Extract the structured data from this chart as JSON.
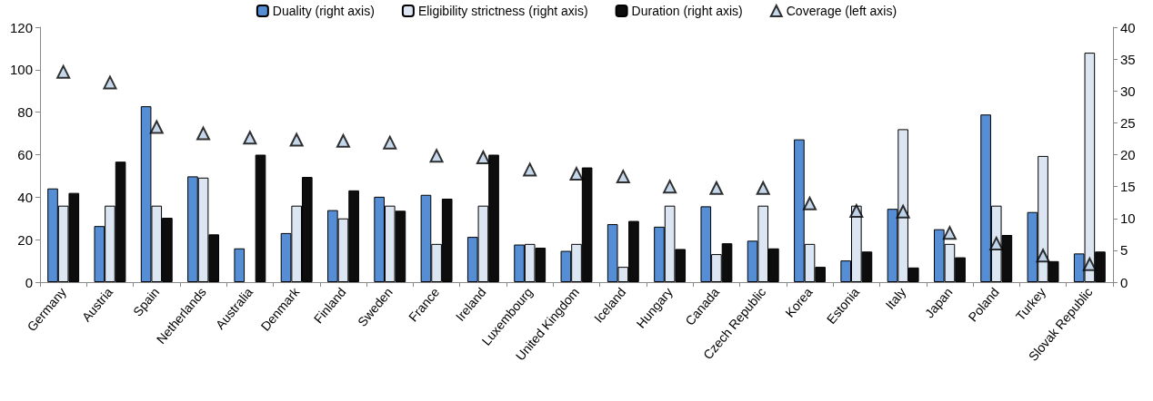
{
  "chart_data": {
    "type": "bar",
    "categories": [
      "Germany",
      "Austria",
      "Spain",
      "Netherlands",
      "Australia",
      "Denmark",
      "Finland",
      "Sweden",
      "France",
      "Ireland",
      "Luxembourg",
      "United Kingdom",
      "Iceland",
      "Hungary",
      "Canada",
      "Czech Republic",
      "Korea",
      "Estonia",
      "Italy",
      "Japan",
      "Poland",
      "Turkey",
      "Slovak Republic"
    ],
    "series": [
      {
        "name": "Duality (right axis)",
        "color": "#558ed5",
        "axis": "y2",
        "values": [
          14.7,
          8.8,
          27.6,
          16.6,
          5.3,
          7.7,
          11.3,
          13.4,
          13.7,
          7.1,
          5.9,
          4.9,
          9.1,
          8.7,
          11.9,
          6.5,
          22.4,
          3.4,
          11.5,
          8.3,
          26.3,
          11,
          4.5
        ]
      },
      {
        "name": "Eligibility strictness (right axis)",
        "color": "#dce6f2",
        "axis": "y2",
        "values": [
          12,
          12,
          12,
          16.4,
          null,
          12,
          10,
          12,
          6,
          12,
          6,
          6,
          2.4,
          12,
          4.4,
          12,
          6,
          12,
          24,
          6,
          12,
          19.8,
          36
        ]
      },
      {
        "name": "Duration (right axis)",
        "color": "#0d0d0d",
        "axis": "y2",
        "values": [
          14,
          18.9,
          10.1,
          7.5,
          20,
          16.5,
          14.4,
          11.2,
          13.1,
          20,
          5.4,
          18,
          9.6,
          5.2,
          6.1,
          5.3,
          2.4,
          4.8,
          2.3,
          3.9,
          7.4,
          3.3,
          4.8
        ]
      },
      {
        "name": "Coverage (left axis)",
        "color": "#b9cde5",
        "type": "scatter",
        "marker": "triangle",
        "values": [
          99,
          94,
          73,
          70,
          68,
          67,
          66.5,
          65.7,
          59.5,
          58.7,
          53,
          51,
          49.7,
          45,
          44.3,
          44.3,
          37,
          33.5,
          33.2,
          23.2,
          18.2,
          12.5,
          8.4
        ]
      }
    ],
    "ylim": [
      0,
      120
    ],
    "yticks": [
      0,
      20,
      40,
      60,
      80,
      100,
      120
    ],
    "y2lim": [
      0,
      40
    ],
    "y2ticks": [
      0,
      5,
      10,
      15,
      20,
      25,
      30,
      35,
      40
    ],
    "grid": false,
    "legend": "top"
  }
}
